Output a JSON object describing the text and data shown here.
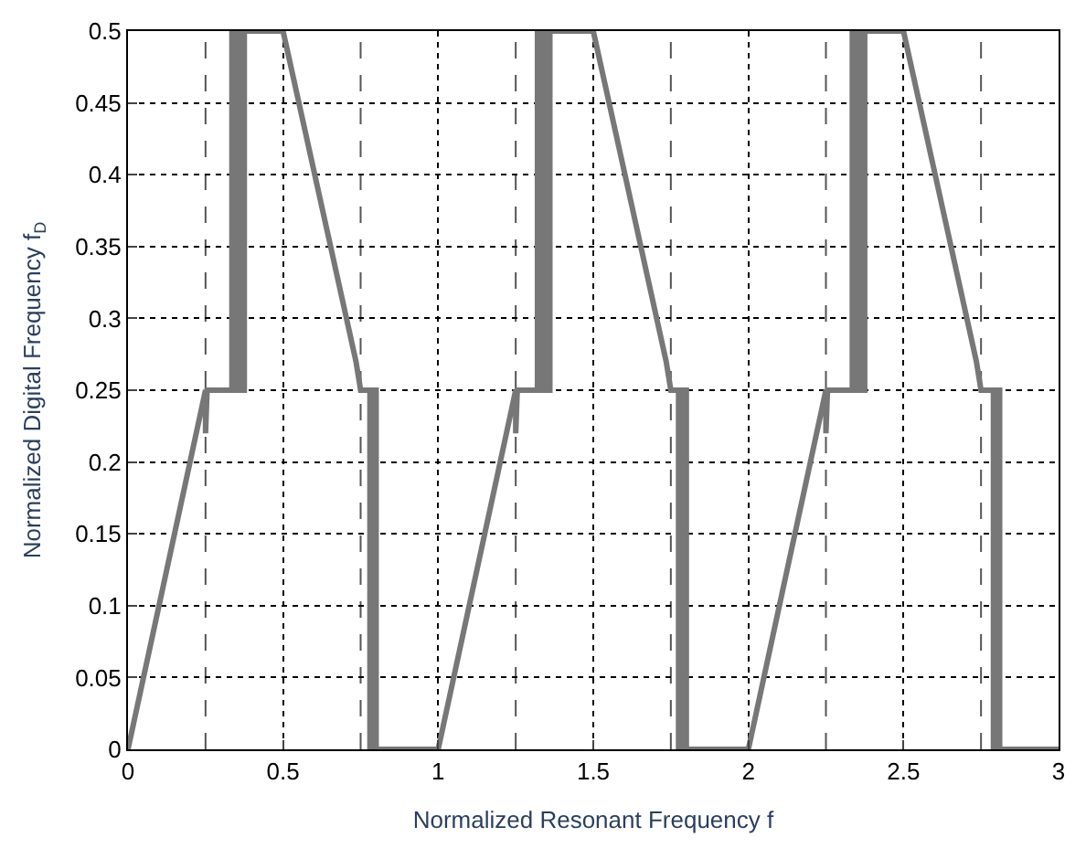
{
  "chart_data": {
    "type": "line",
    "xlabel": "Normalized Resonant Frequency f",
    "ylabel": "Normalized Digital Frequency f$_{D}$",
    "xlim": [
      0,
      3
    ],
    "xticks": [
      0,
      0.5,
      1,
      1.5,
      2,
      2.5,
      3
    ],
    "ylim": [
      0,
      0.5
    ],
    "yticks": [
      0,
      0.05,
      0.1,
      0.15,
      0.2,
      0.25,
      0.3,
      0.35,
      0.4,
      0.45,
      0.5
    ],
    "grid": true,
    "legend": false,
    "marker": "none",
    "line_style": "solid",
    "ref_lines": [
      {
        "axis": "x",
        "value": 0.25,
        "line_style": "dashed",
        "color": "#555555"
      },
      {
        "axis": "x",
        "value": 0.75,
        "line_style": "dashed",
        "color": "#555555"
      },
      {
        "axis": "x",
        "value": 1.25,
        "line_style": "dashed",
        "color": "#555555"
      },
      {
        "axis": "x",
        "value": 1.75,
        "line_style": "dashed",
        "color": "#555555"
      },
      {
        "axis": "x",
        "value": 2.25,
        "line_style": "dashed",
        "color": "#555555"
      },
      {
        "axis": "x",
        "value": 2.75,
        "line_style": "dashed",
        "color": "#555555"
      }
    ],
    "series": [
      {
        "color": "#777777",
        "x": [
          0,
          0.24,
          0.25,
          0.25,
          0.255,
          0.335,
          0.335,
          0.345,
          0.345,
          0.355,
          0.355,
          0.365,
          0.365,
          0.375,
          0.375,
          0.5,
          0.735,
          0.75,
          0.78,
          0.78,
          0.79,
          0.79,
          0.8,
          0.8,
          1,
          1.24,
          1.25,
          1.25,
          1.255,
          1.32,
          1.32,
          1.33,
          1.33,
          1.34,
          1.34,
          1.35,
          1.35,
          1.36,
          1.36,
          1.5,
          1.735,
          1.75,
          1.775,
          1.775,
          1.79,
          1.79,
          1.8,
          1.8,
          2,
          2.24,
          2.25,
          2.25,
          2.255,
          2.335,
          2.335,
          2.345,
          2.345,
          2.355,
          2.355,
          2.365,
          2.365,
          2.375,
          2.375,
          2.5,
          2.735,
          2.75,
          2.79,
          2.79,
          2.8,
          2.8,
          2.81,
          2.81,
          3
        ],
        "values": [
          0,
          0.24,
          0.25,
          0.22,
          0.25,
          0.25,
          0.5,
          0.5,
          0.25,
          0.25,
          0.5,
          0.5,
          0.25,
          0.25,
          0.5,
          0.5,
          0.27,
          0.25,
          0.25,
          0,
          0,
          0.25,
          0.25,
          0,
          0,
          0.24,
          0.25,
          0.22,
          0.25,
          0.25,
          0.5,
          0.5,
          0.25,
          0.25,
          0.5,
          0.5,
          0.25,
          0.25,
          0.5,
          0.5,
          0.27,
          0.25,
          0.25,
          0,
          0,
          0.25,
          0.25,
          0,
          0,
          0.24,
          0.25,
          0.22,
          0.25,
          0.25,
          0.5,
          0.5,
          0.25,
          0.25,
          0.5,
          0.5,
          0.25,
          0.25,
          0.5,
          0.5,
          0.27,
          0.25,
          0.25,
          0,
          0,
          0.25,
          0.25,
          0,
          0
        ]
      }
    ]
  }
}
